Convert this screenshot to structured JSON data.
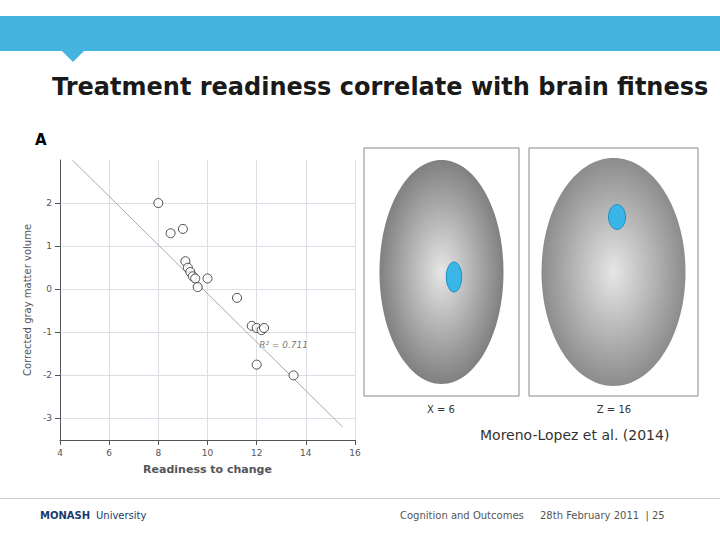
{
  "chart_data": {
    "type": "scatter",
    "title": "Treatment readiness correlate with brain fitness",
    "xlabel": "Readiness to change",
    "ylabel": "Corrected gray matter volume",
    "series": [
      {
        "type": "scatter",
        "marker": "hollow",
        "x": [
          8.0,
          8.5,
          9.0,
          9.1,
          9.2,
          9.3,
          9.4,
          9.5,
          9.6,
          10.0,
          11.2,
          11.8,
          12.0,
          12.0,
          12.2,
          12.3,
          13.5
        ],
        "values": [
          2.0,
          1.3,
          1.4,
          0.65,
          0.5,
          0.4,
          0.3,
          0.25,
          0.05,
          0.25,
          -0.2,
          -0.85,
          -0.9,
          -1.75,
          -0.95,
          -0.9,
          -2.0
        ]
      },
      {
        "type": "line",
        "color": "#aaaaaa",
        "x": [
          4.5,
          15.5
        ],
        "values": [
          3.0,
          -3.2
        ]
      }
    ],
    "xlim": [
      4,
      16
    ],
    "ylim": [
      -3.5,
      3.0
    ],
    "xticks": [
      4,
      6,
      8,
      10,
      12,
      14,
      16
    ],
    "yticks": [
      -3,
      -2,
      -1,
      0,
      1,
      2
    ],
    "grid": true,
    "annotations": [
      {
        "text": "R² = 0.711",
        "x": 12.1,
        "y": -1.3
      },
      {
        "text": "A"
      },
      {
        "text": "X = 6"
      },
      {
        "text": "Z = 16"
      },
      {
        "text": "Moreno-Lopez et al. (2014)"
      },
      {
        "text": "MONASH"
      },
      {
        "text": "University"
      },
      {
        "text": "Cognition and Outcomes"
      },
      {
        "text": "28th February 2011  | 25"
      }
    ]
  }
}
